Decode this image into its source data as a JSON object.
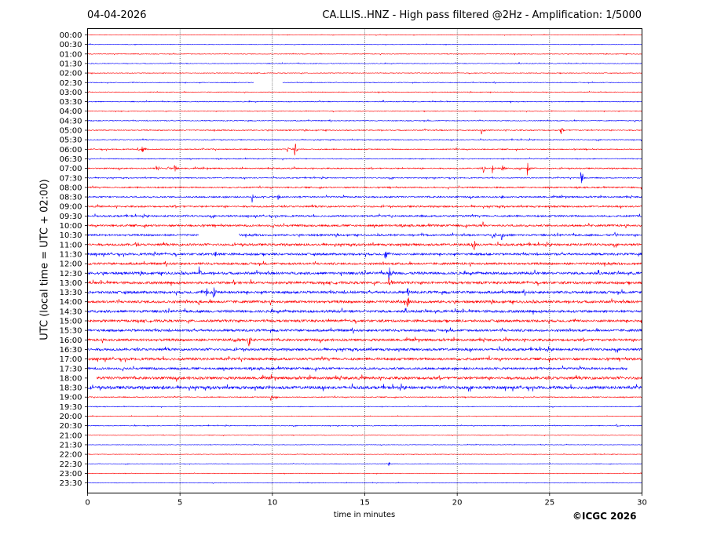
{
  "header": {
    "date": "04-04-2026",
    "title": "CA.LLIS..HNZ - High pass filtered @2Hz - Amplification: 1/5000"
  },
  "footer": {
    "copyright": "©ICGC 2026"
  },
  "chart_data": {
    "type": "line",
    "title": "CA.LLIS..HNZ - High pass filtered @2Hz - Amplification: 1/5000",
    "xlabel": "time in minutes",
    "ylabel": "UTC (local time = UTC + 02:00)",
    "xlim": [
      0,
      30
    ],
    "x_ticks": [
      0,
      5,
      10,
      15,
      20,
      25,
      30
    ],
    "grid": "vertical dotted lines at 5, 10, 15, 20, 25",
    "rows": [
      "00:00",
      "00:30",
      "01:00",
      "01:30",
      "02:00",
      "02:30",
      "03:00",
      "03:30",
      "04:00",
      "04:30",
      "05:00",
      "05:30",
      "06:00",
      "06:30",
      "07:00",
      "07:30",
      "08:00",
      "08:30",
      "09:00",
      "09:30",
      "10:00",
      "10:30",
      "11:00",
      "11:30",
      "12:00",
      "12:30",
      "13:00",
      "13:30",
      "14:00",
      "14:30",
      "15:00",
      "15:30",
      "16:00",
      "16:30",
      "17:00",
      "17:30",
      "18:00",
      "18:30",
      "19:00",
      "19:30",
      "20:00",
      "20:30",
      "21:00",
      "21:30",
      "22:00",
      "22:30",
      "23:00",
      "23:30"
    ],
    "colors": [
      "#ff0000",
      "#0000ff"
    ],
    "noise_level": [
      0.3,
      0.3,
      0.4,
      0.4,
      0.4,
      0.4,
      0.4,
      0.5,
      0.4,
      0.5,
      0.6,
      0.5,
      0.6,
      0.5,
      0.7,
      0.6,
      0.8,
      0.9,
      1.0,
      1.0,
      1.2,
      1.1,
      1.3,
      1.3,
      1.3,
      1.5,
      1.5,
      1.5,
      1.5,
      1.5,
      1.4,
      1.4,
      1.4,
      1.4,
      1.5,
      1.3,
      1.6,
      1.8,
      0.5,
      0.4,
      0.3,
      0.4,
      0.3,
      0.3,
      0.3,
      0.3,
      0.3,
      0.3
    ],
    "row_ranges": [
      {
        "row": 5,
        "segments": [
          [
            0,
            9.0
          ],
          [
            10.55,
            30
          ]
        ]
      },
      {
        "row": 21,
        "segments": [
          [
            0,
            6.0
          ],
          [
            8.2,
            30
          ]
        ]
      },
      {
        "row": 35,
        "segments": [
          [
            0,
            29.2
          ]
        ]
      },
      {
        "row": 36,
        "segments": [
          [
            0.5,
            30
          ]
        ]
      }
    ],
    "events": [
      {
        "row": 10,
        "t": 21.3,
        "amp": 8
      },
      {
        "row": 10,
        "t": 25.6,
        "amp": 9
      },
      {
        "row": 12,
        "t": 2.7,
        "amp": 8
      },
      {
        "row": 12,
        "t": 2.95,
        "amp": 7
      },
      {
        "row": 12,
        "t": 11.2,
        "amp": 14
      },
      {
        "row": 12,
        "t": 10.8,
        "amp": 4
      },
      {
        "row": 14,
        "t": 3.7,
        "amp": 7
      },
      {
        "row": 14,
        "t": 4.3,
        "amp": 6
      },
      {
        "row": 14,
        "t": 4.7,
        "amp": 8
      },
      {
        "row": 14,
        "t": 21.4,
        "amp": 7
      },
      {
        "row": 14,
        "t": 21.9,
        "amp": 6
      },
      {
        "row": 14,
        "t": 22.4,
        "amp": 7
      },
      {
        "row": 14,
        "t": 23.3,
        "amp": 6
      },
      {
        "row": 14,
        "t": 23.8,
        "amp": 11
      },
      {
        "row": 15,
        "t": 26.7,
        "amp": 16
      },
      {
        "row": 17,
        "t": 8.9,
        "amp": 7
      },
      {
        "row": 17,
        "t": 10.3,
        "amp": 6
      },
      {
        "row": 17,
        "t": 22.4,
        "amp": 4
      },
      {
        "row": 20,
        "t": 21.4,
        "amp": 6
      },
      {
        "row": 20,
        "t": 27.1,
        "amp": 4
      },
      {
        "row": 21,
        "t": 18.0,
        "amp": 4
      },
      {
        "row": 21,
        "t": 21.9,
        "amp": 5
      },
      {
        "row": 21,
        "t": 22.4,
        "amp": 8
      },
      {
        "row": 21,
        "t": 28.5,
        "amp": 5
      },
      {
        "row": 22,
        "t": 20.9,
        "amp": 12
      },
      {
        "row": 22,
        "t": 2.6,
        "amp": 4
      },
      {
        "row": 23,
        "t": 16.1,
        "amp": 10
      },
      {
        "row": 23,
        "t": 6.9,
        "amp": 5
      },
      {
        "row": 23,
        "t": 3.6,
        "amp": 3
      },
      {
        "row": 25,
        "t": 6.0,
        "amp": 13
      },
      {
        "row": 25,
        "t": 16.3,
        "amp": 11
      },
      {
        "row": 25,
        "t": 13.7,
        "amp": 4
      },
      {
        "row": 26,
        "t": 7.9,
        "amp": 6
      },
      {
        "row": 26,
        "t": 8.8,
        "amp": 8
      },
      {
        "row": 26,
        "t": 16.3,
        "amp": 12
      },
      {
        "row": 27,
        "t": 6.4,
        "amp": 8
      },
      {
        "row": 27,
        "t": 6.8,
        "amp": 13
      },
      {
        "row": 27,
        "t": 17.3,
        "amp": 10
      },
      {
        "row": 28,
        "t": 17.3,
        "amp": 12
      },
      {
        "row": 28,
        "t": 6.0,
        "amp": 6
      },
      {
        "row": 32,
        "t": 8.7,
        "amp": 12
      },
      {
        "row": 32,
        "t": 7.9,
        "amp": 4
      },
      {
        "row": 33,
        "t": 14.9,
        "amp": 4
      },
      {
        "row": 37,
        "t": 4.1,
        "amp": 4
      },
      {
        "row": 37,
        "t": 9.8,
        "amp": 4
      },
      {
        "row": 38,
        "t": 9.9,
        "amp": 9
      },
      {
        "row": 38,
        "t": 10.2,
        "amp": 5
      },
      {
        "row": 41,
        "t": 2.5,
        "amp": 3
      },
      {
        "row": 41,
        "t": 28.6,
        "amp": 3
      },
      {
        "row": 45,
        "t": 16.3,
        "amp": 3
      }
    ]
  }
}
